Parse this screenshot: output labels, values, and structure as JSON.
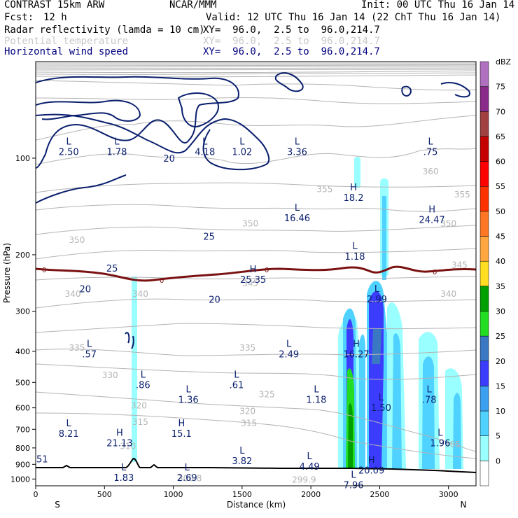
{
  "header": {
    "model": "CONTRAST 15km ARW",
    "center": "NCAR/MMM",
    "init": "Init: 00 UTC Thu 16 Jan 14",
    "fcst_label": "Fcst:",
    "fcst_value": "12 h",
    "valid": "Valid: 12 UTC Thu 16 Jan 14 (22 ChT Thu 16 Jan 14)",
    "fields": [
      {
        "name": "Radar reflectivity (lamda = 10 cm)",
        "xy": "XY=  96.0,  2.5 to  96.0,214.7",
        "color": "#000000"
      },
      {
        "name": "Potential temperature",
        "xy": "XY=  96.0,  2.5 to  96.0,214.7",
        "color": "#c8c8c8"
      },
      {
        "name": "Horizontal wind speed",
        "xy": "XY=  96.0,  2.5 to  96.0,214.7",
        "color": "#00007f"
      }
    ]
  },
  "colors": {
    "theta": "#b4b4b4",
    "wind": "#0a1f6e",
    "freezing": "#7a1212",
    "terrain": "#000000"
  },
  "chart_data": {
    "type": "cross-section",
    "xlabel": "Distance (km)",
    "ylabel": "Pressure (hPa)",
    "xlim": [
      0,
      3200
    ],
    "ylim": [
      1050,
      50
    ],
    "x_ticks": [
      0,
      500,
      1000,
      1500,
      2000,
      2500,
      3000
    ],
    "y_ticks": [
      100,
      200,
      300,
      400,
      500,
      600,
      700,
      800,
      900,
      1000
    ],
    "endpoints": {
      "left": "S",
      "right": "N"
    },
    "colorbar": {
      "title": "dBZ",
      "levels": [
        0,
        5,
        10,
        15,
        20,
        25,
        30,
        35,
        40,
        45,
        50,
        55,
        60,
        65,
        70,
        75
      ],
      "colors": [
        "#ffffff",
        "#99ffff",
        "#4fd2ff",
        "#3ca0f0",
        "#3c3cff",
        "#3a78c4",
        "#22dd22",
        "#00a000",
        "#ffdd22",
        "#ffa640",
        "#ff7722",
        "#ff3300",
        "#ff0000",
        "#c40000",
        "#a04040",
        "#8a2a8a",
        "#b070c0"
      ]
    },
    "theta_contours": [
      {
        "value": "300.8",
        "x": 1120,
        "p": 995
      },
      {
        "value": "299.9",
        "x": 1950,
        "p": 1005
      },
      {
        "value": "305",
        "x": 3030,
        "p": 780
      },
      {
        "value": "310",
        "x": 670,
        "p": 790
      },
      {
        "value": "315",
        "x": 760,
        "p": 665
      },
      {
        "value": "315",
        "x": 1550,
        "p": 670
      },
      {
        "value": "320",
        "x": 750,
        "p": 590
      },
      {
        "value": "320",
        "x": 1540,
        "p": 615
      },
      {
        "value": "325",
        "x": 1680,
        "p": 545
      },
      {
        "value": "330",
        "x": 540,
        "p": 475
      },
      {
        "value": "335",
        "x": 300,
        "p": 390
      },
      {
        "value": "335",
        "x": 1540,
        "p": 390
      },
      {
        "value": "340",
        "x": 270,
        "p": 265
      },
      {
        "value": "340",
        "x": 760,
        "p": 265
      },
      {
        "value": "340",
        "x": 3000,
        "p": 265
      },
      {
        "value": "345",
        "x": 1560,
        "p": 245
      },
      {
        "value": "345",
        "x": 3080,
        "p": 215
      },
      {
        "value": "350",
        "x": 300,
        "p": 180
      },
      {
        "value": "350",
        "x": 1560,
        "p": 160
      },
      {
        "value": "350",
        "x": 3000,
        "p": 160
      },
      {
        "value": "355",
        "x": 2100,
        "p": 125
      },
      {
        "value": "355",
        "x": 3100,
        "p": 130
      },
      {
        "value": "360",
        "x": 2870,
        "p": 110
      }
    ],
    "freezing_level_label": "0",
    "wind_contour_labels": [
      {
        "value": "20",
        "x": 970,
        "p": 100
      },
      {
        "value": "25",
        "x": 1260,
        "p": 175
      },
      {
        "value": "25",
        "x": 555,
        "p": 220
      },
      {
        "value": "20",
        "x": 360,
        "p": 255
      },
      {
        "value": "20",
        "x": 1300,
        "p": 275
      }
    ],
    "extrema": [
      {
        "label": "L",
        "value": "2.50",
        "x": 240,
        "p": 92
      },
      {
        "label": "L",
        "value": "1.78",
        "x": 590,
        "p": 92
      },
      {
        "label": "L",
        "value": "4.18",
        "x": 1230,
        "p": 92
      },
      {
        "label": "L",
        "value": "1.02",
        "x": 1500,
        "p": 92
      },
      {
        "label": "L",
        "value": "3.36",
        "x": 1900,
        "p": 92
      },
      {
        "label": "L",
        "value": ".75",
        "x": 2870,
        "p": 92
      },
      {
        "label": "H",
        "value": "18.2",
        "x": 2310,
        "p": 128
      },
      {
        "label": "H",
        "value": "24.47",
        "x": 2880,
        "p": 150
      },
      {
        "label": "L",
        "value": "16.46",
        "x": 1900,
        "p": 148
      },
      {
        "label": "L",
        "value": "1.18",
        "x": 2320,
        "p": 195
      },
      {
        "label": "H",
        "value": "25.35",
        "x": 1580,
        "p": 230
      },
      {
        "label": "L",
        "value": "2.99",
        "x": 2480,
        "p": 265
      },
      {
        "label": "L",
        "value": ".57",
        "x": 390,
        "p": 393
      },
      {
        "label": "L",
        "value": "2.49",
        "x": 1840,
        "p": 393
      },
      {
        "label": "H",
        "value": "16.27",
        "x": 2330,
        "p": 393
      },
      {
        "label": "L",
        "value": ".86",
        "x": 780,
        "p": 490
      },
      {
        "label": "L",
        "value": ".61",
        "x": 1460,
        "p": 490
      },
      {
        "label": "L",
        "value": "1.36",
        "x": 1110,
        "p": 545
      },
      {
        "label": "L",
        "value": "1.18",
        "x": 2040,
        "p": 545
      },
      {
        "label": "L",
        "value": ".78",
        "x": 2860,
        "p": 545
      },
      {
        "label": "L",
        "value": "1.50",
        "x": 2510,
        "p": 578
      },
      {
        "label": "L",
        "value": "8.21",
        "x": 240,
        "p": 695
      },
      {
        "label": "H",
        "value": "15.1",
        "x": 1060,
        "p": 695
      },
      {
        "label": "H",
        "value": "21.13",
        "x": 610,
        "p": 745
      },
      {
        "label": "L",
        "value": "1.96",
        "x": 2940,
        "p": 745
      },
      {
        "label": "L",
        "value": "3.82",
        "x": 1500,
        "p": 845
      },
      {
        "label": "L",
        "value": "4.49",
        "x": 1990,
        "p": 880
      },
      {
        "label": "H",
        "value": "20.09",
        "x": 2440,
        "p": 905
      },
      {
        "label": "L",
        "value": "1.83",
        "x": 640,
        "p": 955
      },
      {
        "label": "L",
        "value": "2.69",
        "x": 1100,
        "p": 955
      },
      {
        "label": "L",
        "value": "7.96",
        "x": 2310,
        "p": 1005
      }
    ],
    "edge_label": "51"
  }
}
